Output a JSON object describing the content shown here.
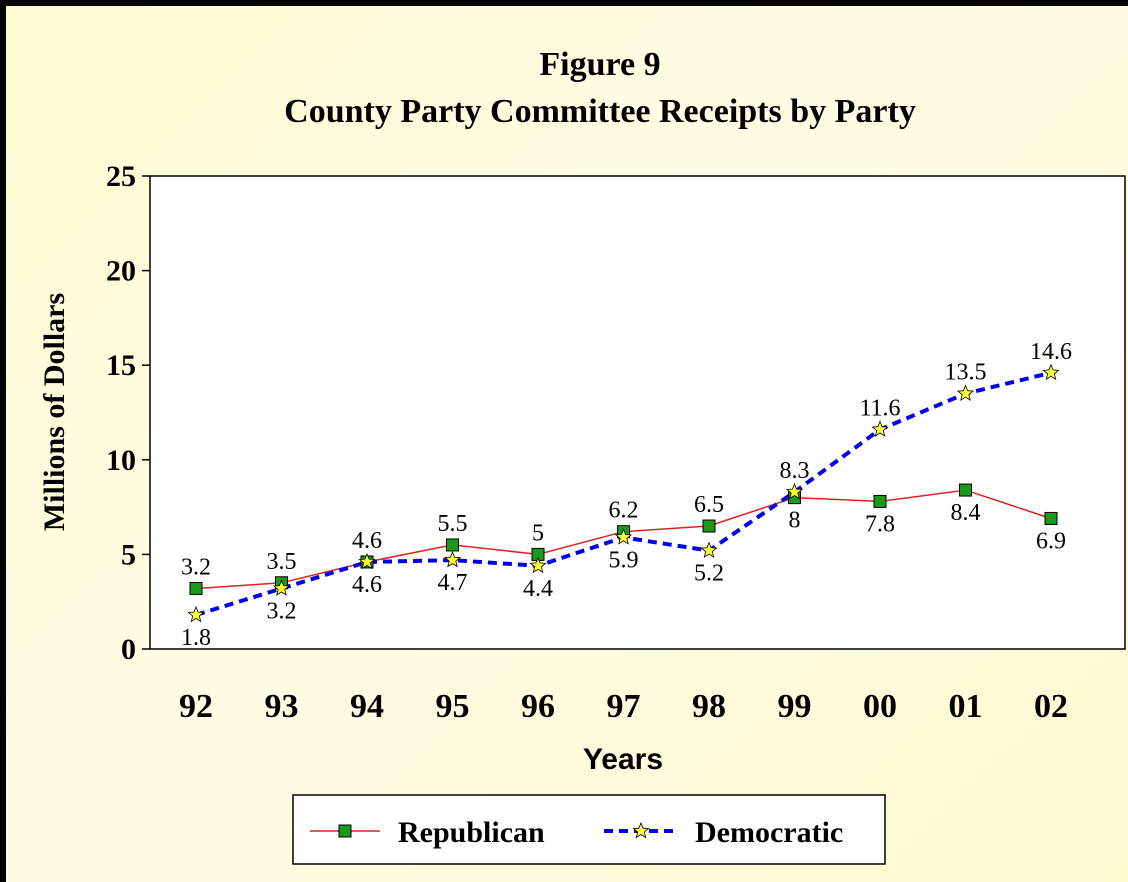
{
  "chart_data": {
    "type": "line",
    "title": "Figure 9",
    "subtitle": "County Party Committee Receipts by Party",
    "xlabel": "Years",
    "ylabel": "Millions of Dollars",
    "ylim": [
      0,
      25
    ],
    "yticks": [
      "0",
      "5",
      "10",
      "15",
      "20",
      "25"
    ],
    "categories": [
      "92",
      "93",
      "94",
      "95",
      "96",
      "97",
      "98",
      "99",
      "00",
      "01",
      "02"
    ],
    "grid": false,
    "legend_position": "bottom",
    "series": [
      {
        "name": "Republican",
        "values": [
          3.2,
          3.5,
          4.6,
          5.5,
          5,
          6.2,
          6.5,
          8,
          7.8,
          8.4,
          6.9
        ],
        "labels": [
          "3.2",
          "3.5",
          "4.6",
          "5.5",
          "5",
          "6.2",
          "6.5",
          "8",
          "7.8",
          "8.4",
          "6.9"
        ],
        "color": "#dd2222",
        "marker": "square",
        "marker_color": "#1a9a1a",
        "line_style": "solid"
      },
      {
        "name": "Democratic",
        "values": [
          1.8,
          3.2,
          4.6,
          4.7,
          4.4,
          5.9,
          5.2,
          8.3,
          11.6,
          13.5,
          14.6
        ],
        "labels": [
          "1.8",
          "3.2",
          "4.6",
          "4.7",
          "4.4",
          "5.9",
          "5.2",
          "8.3",
          "11.6",
          "13.5",
          "14.6"
        ],
        "color": "#0000ee",
        "marker": "star",
        "marker_color": "#ffff33",
        "line_style": "dashed"
      }
    ]
  }
}
